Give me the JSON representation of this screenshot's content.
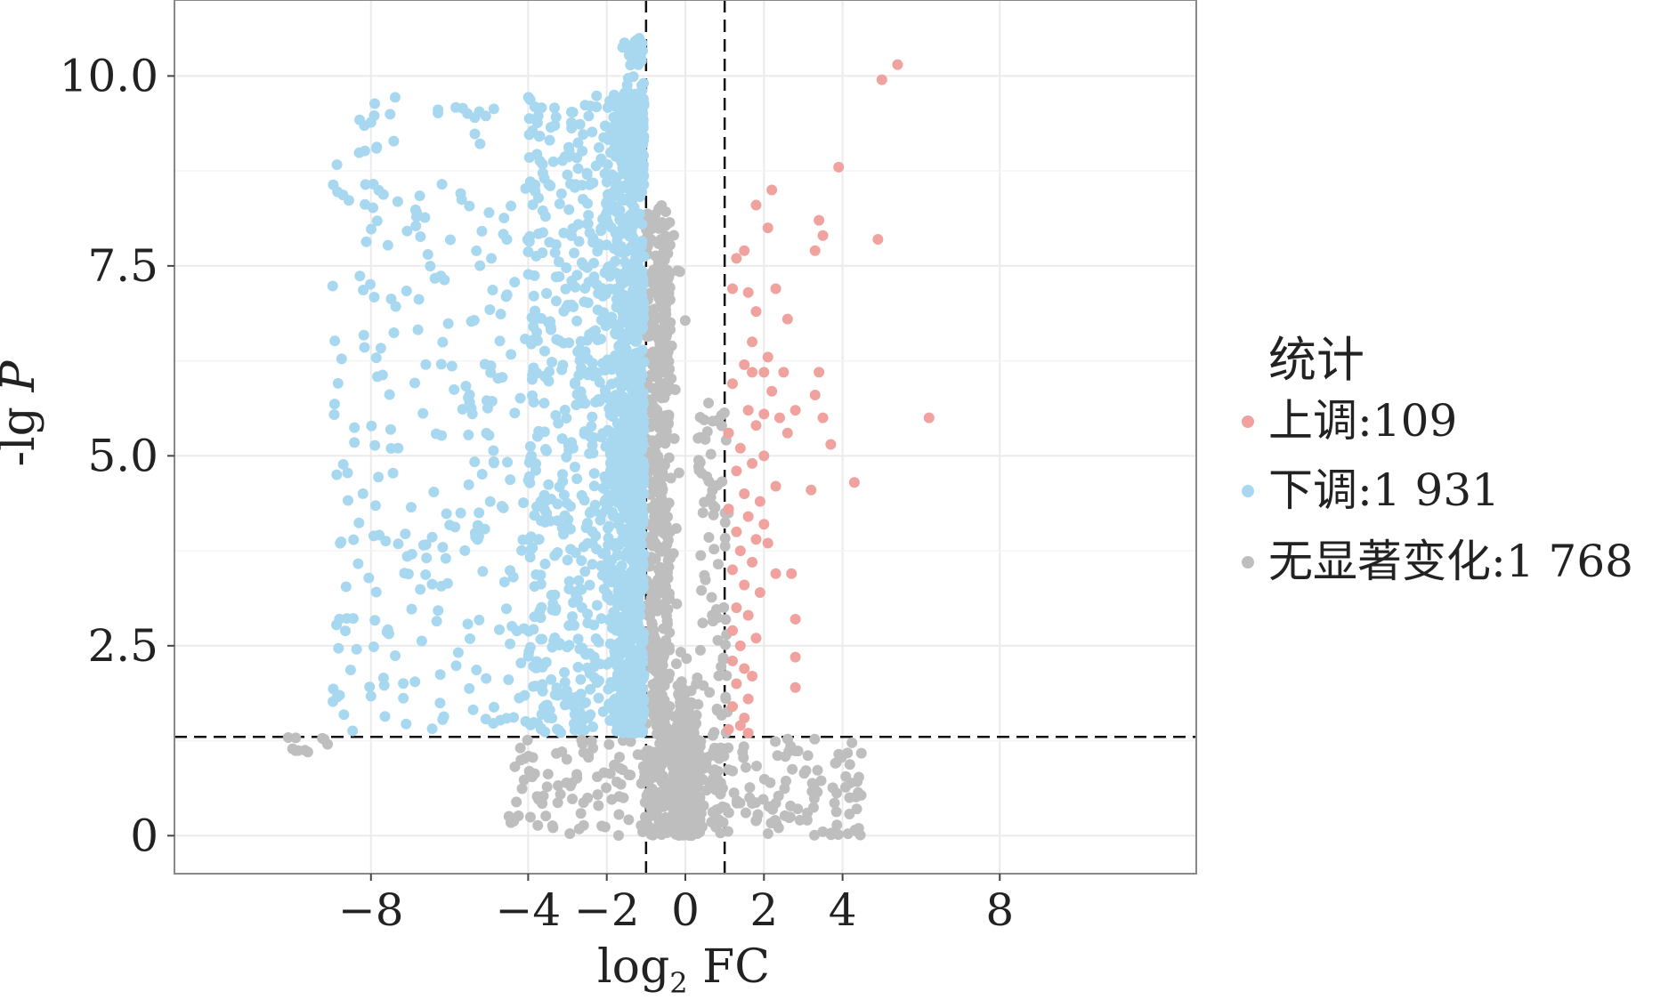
{
  "chart_data": {
    "type": "scatter",
    "xlabel_base": "log",
    "xlabel_sub": "2",
    "xlabel_tail": " FC",
    "ylabel_prefix": "-lg ",
    "ylabel_var": "P",
    "xlim": [
      -13,
      13
    ],
    "ylim": [
      -0.5,
      11
    ],
    "x_ticks": [
      -8,
      -4,
      -2,
      0,
      2,
      4,
      8
    ],
    "x_tick_labels": [
      "−8",
      "−4",
      "−2",
      "0",
      "2",
      "4",
      "8"
    ],
    "y_ticks": [
      0,
      2.5,
      5,
      7.5,
      10
    ],
    "y_tick_labels": [
      "0",
      "2.5",
      "5.0",
      "7.5",
      "10.0"
    ],
    "grid": true,
    "thresholds": {
      "x": [
        -1,
        1
      ],
      "y": 1.3
    },
    "legend": {
      "title": "统计",
      "position": "right",
      "entries": [
        {
          "name": "up",
          "label": "上调:109",
          "color": "#F0A29E"
        },
        {
          "name": "down",
          "label": "下调:1 931",
          "color": "#A8D8F0"
        },
        {
          "name": "ns",
          "label": "无显著变化:1 768",
          "color": "#BEBEBE"
        }
      ]
    },
    "series": [
      {
        "name": "up",
        "count": 109,
        "color": "#F0A29E",
        "points": [
          [
            5.4,
            10.15
          ],
          [
            5.0,
            9.95
          ],
          [
            3.9,
            8.8
          ],
          [
            2.2,
            8.5
          ],
          [
            1.8,
            8.3
          ],
          [
            2.1,
            8.0
          ],
          [
            3.4,
            8.1
          ],
          [
            3.5,
            7.9
          ],
          [
            4.9,
            7.85
          ],
          [
            3.3,
            7.7
          ],
          [
            1.3,
            7.6
          ],
          [
            1.5,
            7.7
          ],
          [
            1.2,
            7.2
          ],
          [
            1.6,
            7.15
          ],
          [
            2.3,
            7.2
          ],
          [
            1.8,
            6.9
          ],
          [
            2.6,
            6.8
          ],
          [
            1.7,
            6.5
          ],
          [
            2.1,
            6.3
          ],
          [
            1.5,
            6.2
          ],
          [
            1.7,
            6.1
          ],
          [
            2.0,
            6.1
          ],
          [
            2.5,
            6.1
          ],
          [
            3.4,
            6.1
          ],
          [
            1.2,
            5.95
          ],
          [
            2.2,
            5.85
          ],
          [
            3.3,
            5.8
          ],
          [
            2.8,
            5.6
          ],
          [
            1.6,
            5.6
          ],
          [
            2.0,
            5.55
          ],
          [
            3.5,
            5.5
          ],
          [
            2.4,
            5.5
          ],
          [
            6.2,
            5.5
          ],
          [
            1.8,
            5.4
          ],
          [
            2.6,
            5.3
          ],
          [
            1.1,
            5.3
          ],
          [
            3.7,
            5.15
          ],
          [
            1.4,
            5.1
          ],
          [
            2.0,
            5.0
          ],
          [
            1.7,
            4.9
          ],
          [
            1.3,
            4.8
          ],
          [
            2.3,
            4.6
          ],
          [
            3.2,
            4.55
          ],
          [
            4.3,
            4.65
          ],
          [
            1.5,
            4.5
          ],
          [
            1.9,
            4.4
          ],
          [
            1.1,
            4.3
          ],
          [
            1.6,
            4.2
          ],
          [
            2.0,
            4.1
          ],
          [
            1.3,
            4.0
          ],
          [
            1.8,
            3.9
          ],
          [
            2.1,
            3.85
          ],
          [
            1.4,
            3.75
          ],
          [
            1.7,
            3.6
          ],
          [
            1.2,
            3.5
          ],
          [
            2.3,
            3.45
          ],
          [
            2.7,
            3.45
          ],
          [
            1.5,
            3.3
          ],
          [
            1.9,
            3.2
          ],
          [
            1.3,
            3.0
          ],
          [
            1.6,
            2.9
          ],
          [
            2.8,
            2.85
          ],
          [
            1.2,
            2.7
          ],
          [
            1.8,
            2.6
          ],
          [
            1.4,
            2.5
          ],
          [
            1.2,
            2.3
          ],
          [
            2.8,
            2.35
          ],
          [
            1.5,
            2.2
          ],
          [
            1.7,
            2.1
          ],
          [
            1.3,
            2.0
          ],
          [
            2.8,
            1.95
          ],
          [
            1.6,
            1.8
          ],
          [
            1.2,
            1.7
          ],
          [
            1.5,
            1.55
          ],
          [
            1.4,
            1.45
          ],
          [
            1.1,
            1.4
          ],
          [
            1.6,
            1.35
          ]
        ]
      },
      {
        "name": "down",
        "count": 1931,
        "color": "#A8D8F0"
      },
      {
        "name": "ns",
        "count": 1768,
        "color": "#BEBEBE"
      }
    ]
  }
}
